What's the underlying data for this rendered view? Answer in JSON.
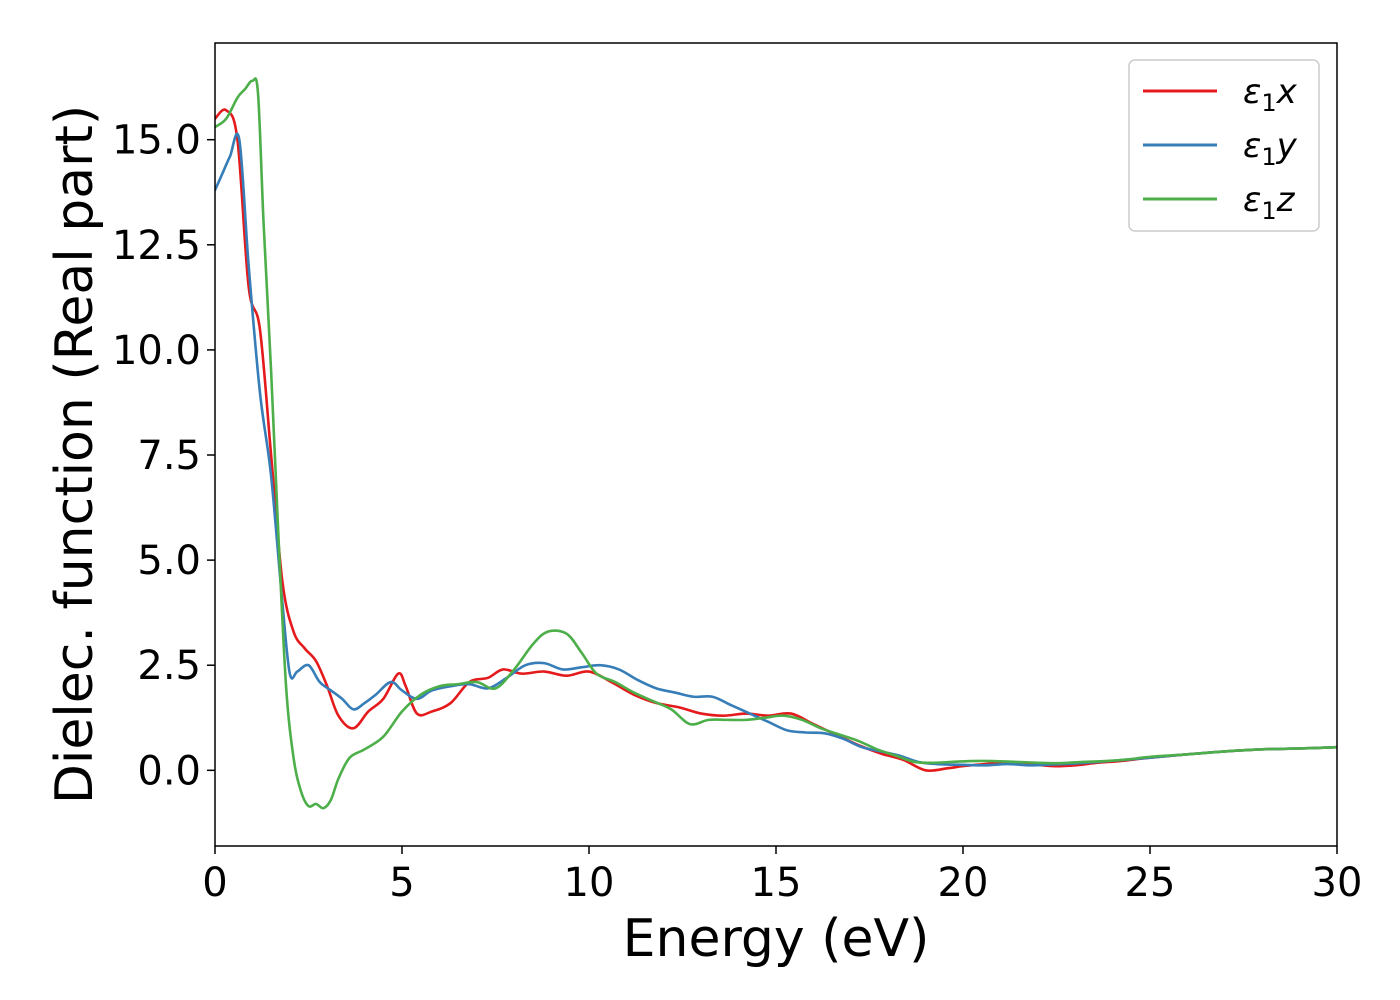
{
  "chart_data": {
    "type": "line",
    "title": "",
    "xlabel": "Energy (eV)",
    "ylabel": "Dielec. function (Real part)",
    "xlim": [
      0,
      30
    ],
    "ylim": [
      -1.8,
      17.3
    ],
    "xticks": [
      0,
      5,
      10,
      15,
      20,
      25,
      30
    ],
    "xtick_labels": [
      "0",
      "5",
      "10",
      "15",
      "20",
      "25",
      "30"
    ],
    "yticks": [
      0.0,
      2.5,
      5.0,
      7.5,
      10.0,
      12.5,
      15.0
    ],
    "ytick_labels": [
      "0.0",
      "2.5",
      "5.0",
      "7.5",
      "10.0",
      "12.5",
      "15.0"
    ],
    "grid": false,
    "legend_position": "top-right",
    "series": [
      {
        "name": "ε1x",
        "legend_base": "ε",
        "legend_sub": "1",
        "legend_var": "x",
        "color": "#e41a1c",
        "x": [
          0,
          0.3,
          0.6,
          0.9,
          1.2,
          1.5,
          1.8,
          2.1,
          2.4,
          2.7,
          3.0,
          3.3,
          3.7,
          4.1,
          4.5,
          4.9,
          5.1,
          5.4,
          5.8,
          6.3,
          6.8,
          7.3,
          7.7,
          8.2,
          8.8,
          9.4,
          10.0,
          10.6,
          11.2,
          11.8,
          12.4,
          13.0,
          13.6,
          14.2,
          14.8,
          15.4,
          16.0,
          16.6,
          17.2,
          17.8,
          18.4,
          19.0,
          19.6,
          20.0,
          20.6,
          21.2,
          21.8,
          22.4,
          23.0,
          23.6,
          24.2,
          25.0,
          26.0,
          27.0,
          28.0,
          29.0,
          30.0
        ],
        "y": [
          15.5,
          15.7,
          15.0,
          11.5,
          10.5,
          7.5,
          4.5,
          3.3,
          2.9,
          2.6,
          2.0,
          1.3,
          1.0,
          1.4,
          1.7,
          2.3,
          2.0,
          1.35,
          1.4,
          1.6,
          2.1,
          2.2,
          2.4,
          2.3,
          2.35,
          2.25,
          2.35,
          2.1,
          1.8,
          1.6,
          1.5,
          1.35,
          1.3,
          1.35,
          1.3,
          1.35,
          1.1,
          0.85,
          0.6,
          0.4,
          0.25,
          0.0,
          0.05,
          0.1,
          0.15,
          0.2,
          0.15,
          0.1,
          0.12,
          0.18,
          0.22,
          0.3,
          0.38,
          0.45,
          0.5,
          0.52,
          0.55
        ]
      },
      {
        "name": "ε1y",
        "legend_base": "ε",
        "legend_sub": "1",
        "legend_var": "y",
        "color": "#377eb8",
        "x": [
          0,
          0.2,
          0.4,
          0.65,
          0.9,
          1.2,
          1.5,
          1.8,
          2.0,
          2.2,
          2.5,
          2.8,
          3.1,
          3.4,
          3.7,
          4.0,
          4.3,
          4.7,
          5.0,
          5.4,
          5.8,
          6.3,
          6.8,
          7.3,
          7.8,
          8.3,
          8.8,
          9.3,
          9.8,
          10.3,
          10.8,
          11.3,
          11.8,
          12.3,
          12.8,
          13.3,
          13.8,
          14.3,
          14.8,
          15.3,
          15.8,
          16.3,
          16.8,
          17.3,
          17.8,
          18.3,
          18.8,
          19.3,
          20.0,
          20.6,
          21.2,
          21.8,
          22.4,
          23.0,
          23.6,
          24.2,
          25.0,
          26.0,
          27.0,
          28.0,
          29.0,
          30.0
        ],
        "y": [
          13.8,
          14.2,
          14.6,
          15.0,
          12.0,
          9.0,
          7.0,
          4.0,
          2.3,
          2.35,
          2.5,
          2.1,
          1.9,
          1.7,
          1.45,
          1.6,
          1.8,
          2.1,
          1.9,
          1.7,
          1.9,
          2.0,
          2.05,
          1.95,
          2.2,
          2.5,
          2.55,
          2.4,
          2.45,
          2.5,
          2.4,
          2.15,
          1.95,
          1.85,
          1.75,
          1.75,
          1.55,
          1.35,
          1.15,
          0.95,
          0.9,
          0.88,
          0.75,
          0.55,
          0.45,
          0.35,
          0.2,
          0.15,
          0.13,
          0.12,
          0.15,
          0.12,
          0.14,
          0.16,
          0.2,
          0.24,
          0.3,
          0.38,
          0.45,
          0.5,
          0.52,
          0.55
        ]
      },
      {
        "name": "ε1z",
        "legend_base": "ε",
        "legend_sub": "1",
        "legend_var": "z",
        "color": "#4daf4a",
        "x": [
          0,
          0.3,
          0.6,
          0.8,
          1.0,
          1.15,
          1.3,
          1.5,
          1.7,
          1.9,
          2.1,
          2.3,
          2.5,
          2.7,
          2.9,
          3.1,
          3.3,
          3.6,
          4.0,
          4.5,
          5.0,
          5.5,
          6.0,
          6.5,
          7.0,
          7.5,
          8.0,
          8.5,
          8.9,
          9.4,
          9.8,
          10.2,
          10.7,
          11.2,
          11.7,
          12.2,
          12.7,
          13.2,
          13.7,
          14.2,
          14.7,
          15.2,
          15.7,
          16.2,
          16.7,
          17.2,
          17.7,
          18.2,
          18.7,
          19.2,
          19.7,
          20.2,
          20.8,
          21.4,
          22.0,
          22.6,
          23.2,
          23.8,
          24.4,
          25.0,
          26.0,
          27.0,
          28.0,
          29.0,
          30.0
        ],
        "y": [
          15.3,
          15.5,
          16.0,
          16.2,
          16.4,
          16.1,
          13.0,
          9.5,
          5.5,
          2.0,
          0.3,
          -0.5,
          -0.85,
          -0.8,
          -0.9,
          -0.7,
          -0.2,
          0.3,
          0.5,
          0.8,
          1.4,
          1.8,
          2.0,
          2.05,
          2.1,
          1.95,
          2.4,
          3.0,
          3.3,
          3.25,
          2.8,
          2.3,
          2.1,
          1.85,
          1.65,
          1.45,
          1.1,
          1.2,
          1.2,
          1.2,
          1.25,
          1.3,
          1.2,
          1.0,
          0.85,
          0.7,
          0.5,
          0.35,
          0.2,
          0.18,
          0.2,
          0.22,
          0.22,
          0.2,
          0.18,
          0.17,
          0.2,
          0.22,
          0.26,
          0.32,
          0.38,
          0.45,
          0.5,
          0.52,
          0.55
        ]
      }
    ]
  }
}
